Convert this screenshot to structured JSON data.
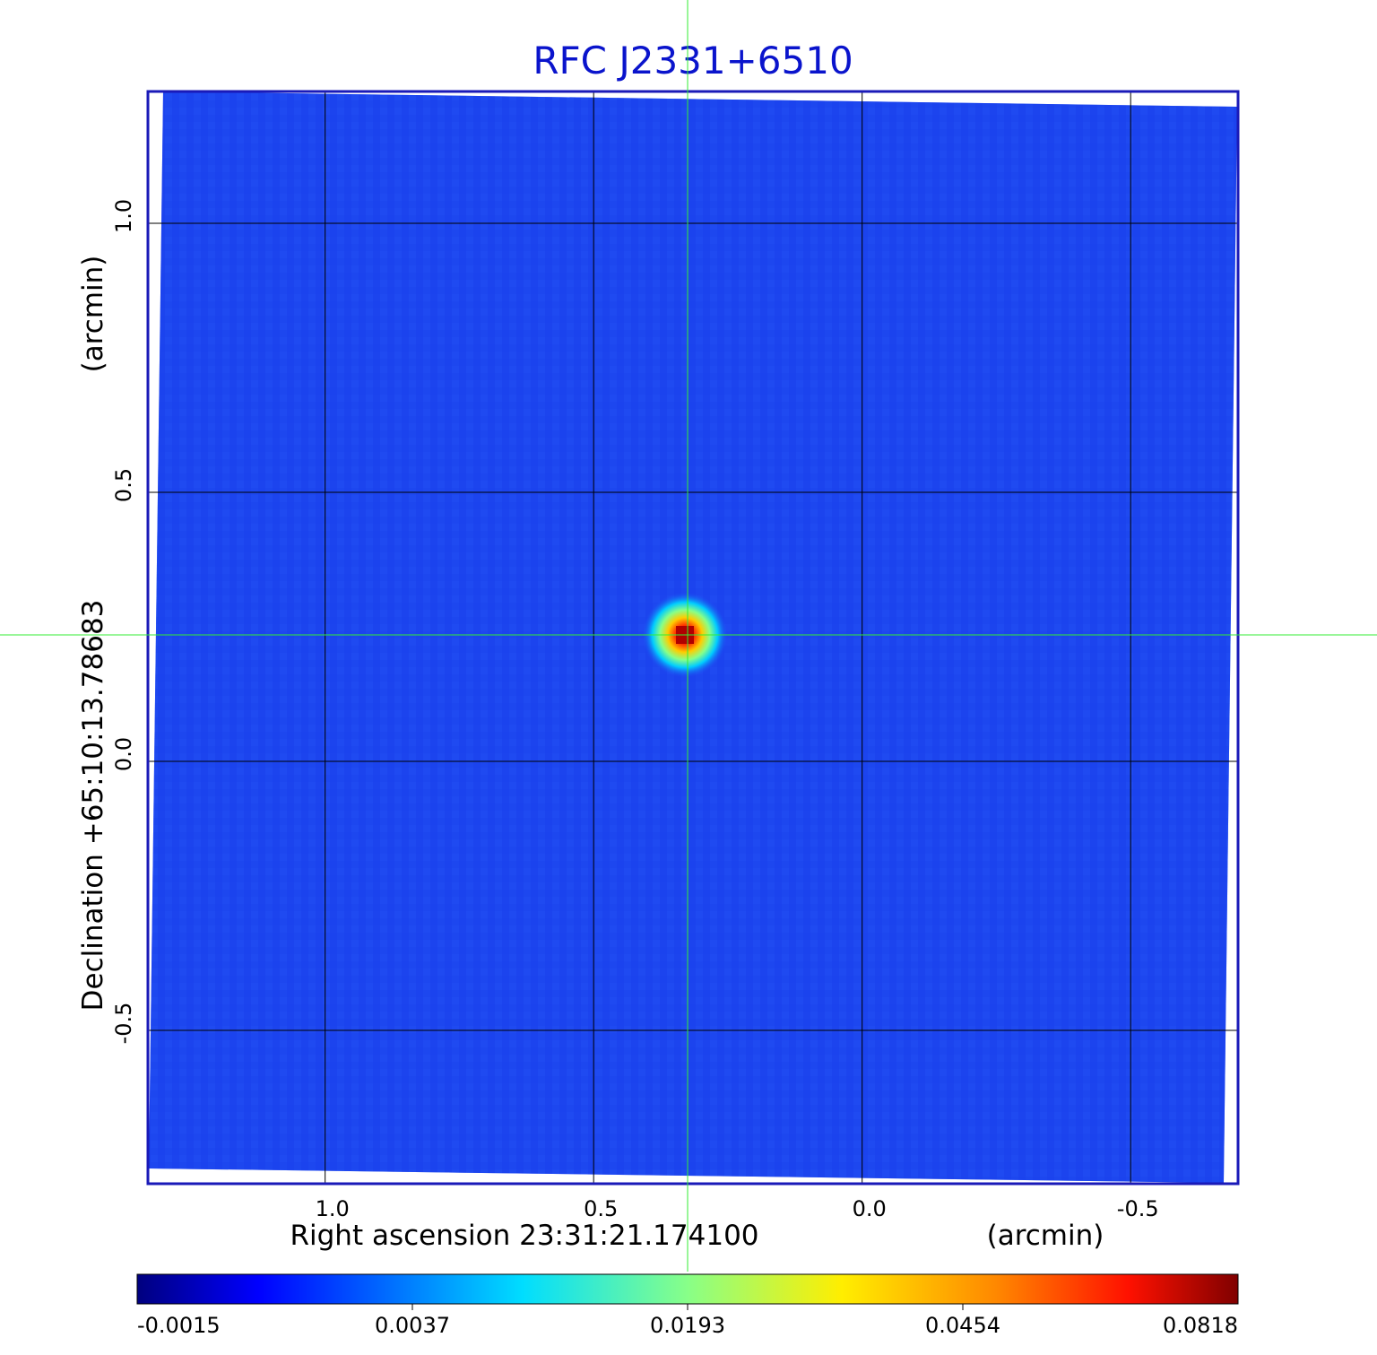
{
  "chart_data": {
    "type": "heatmap",
    "title": "RFC J2331+6510",
    "xlabel": "Right ascension  23:31:21.174100",
    "xlabel_unit": "(arcmin)",
    "ylabel": "Declination  +65:10:13.78683",
    "ylabel_unit": "(arcmin)",
    "x_ticks": [
      "1.0",
      "0.5",
      "0.0",
      "-0.5"
    ],
    "y_ticks": [
      "1.0",
      "0.5",
      "0.0",
      "-0.5"
    ],
    "x_tick_values": [
      1.0,
      0.5,
      0.0,
      -0.5
    ],
    "y_tick_values": [
      1.0,
      0.5,
      0.0,
      -0.5
    ],
    "xlim": [
      1.33,
      -0.7
    ],
    "ylim": [
      -0.785,
      1.245
    ],
    "grid": true,
    "colormap": "jet",
    "colorbar": {
      "placement": "bottom",
      "ticks": [
        "-0.0015",
        "0.0037",
        "0.0193",
        "0.0454",
        "0.0818"
      ],
      "range": [
        -0.0015,
        0.0818
      ]
    },
    "source": {
      "x_arcmin": 0.33,
      "y_arcmin": 0.235,
      "peak_value": 0.0818
    },
    "crosshair": {
      "x_arcmin": 0.325,
      "y_arcmin": 0.235
    },
    "background_level": -0.0003
  },
  "colors": {
    "title": "#0a14cc",
    "frame": "#1a1ab8",
    "crosshair": "#33ee33",
    "background_map": "#1e46f0"
  }
}
